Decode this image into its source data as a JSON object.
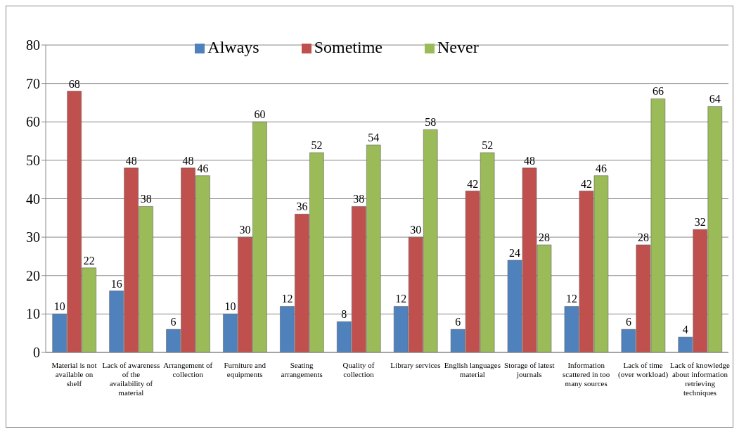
{
  "chart_data": {
    "type": "bar",
    "categories": [
      "Material is not available on shelf",
      "Lack of awareness of the availability of material",
      "Arrangement of collection",
      "Furniture and equipments",
      "Seating arrangements",
      "Quality of collection",
      "Library services",
      "English languages material",
      "Storage of latest journals",
      "Information scattered in too many sources",
      "Lack of time (over workload)",
      "Lack of knowledge about information retrieving techniques"
    ],
    "series": [
      {
        "name": "Always",
        "color": "#4f81bd",
        "values": [
          10,
          16,
          6,
          10,
          12,
          8,
          12,
          6,
          24,
          12,
          6,
          4
        ]
      },
      {
        "name": "Sometime",
        "color": "#c0504d",
        "values": [
          68,
          48,
          48,
          30,
          36,
          38,
          30,
          42,
          48,
          42,
          28,
          32
        ]
      },
      {
        "name": "Never",
        "color": "#9bbb59",
        "values": [
          22,
          38,
          46,
          60,
          52,
          54,
          58,
          52,
          28,
          46,
          66,
          64
        ]
      }
    ],
    "ylim": [
      0,
      80
    ],
    "yticks": [
      0,
      10,
      20,
      30,
      40,
      50,
      60,
      70,
      80
    ],
    "grid": "y",
    "legend": "top",
    "data_labels": true
  }
}
